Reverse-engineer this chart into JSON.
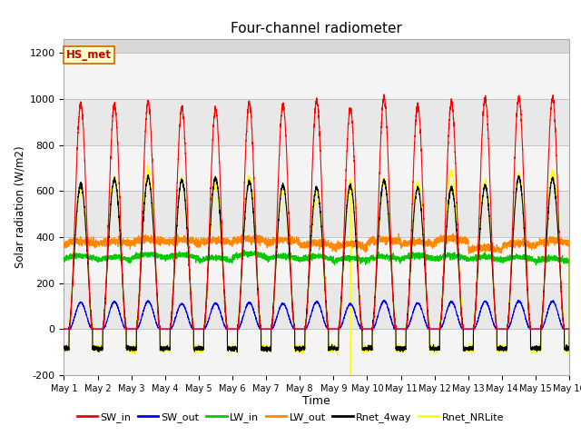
{
  "title": "Four-channel radiometer",
  "xlabel": "Time",
  "ylabel": "Solar radiation (W/m2)",
  "ylim": [
    -200,
    1260
  ],
  "yticks": [
    -200,
    0,
    200,
    400,
    600,
    800,
    1000,
    1200
  ],
  "n_days": 15,
  "label_text": "HS_met",
  "legend_entries": [
    "SW_in",
    "SW_out",
    "LW_in",
    "LW_out",
    "Rnet_4way",
    "Rnet_NRLite"
  ],
  "line_colors": [
    "#ff0000",
    "#0000ff",
    "#00cc00",
    "#ff8800",
    "#000000",
    "#ffff00"
  ],
  "bg_color": "#d8d8d8",
  "band_light": "#e8e8e8",
  "band_white": "#f4f4f4"
}
